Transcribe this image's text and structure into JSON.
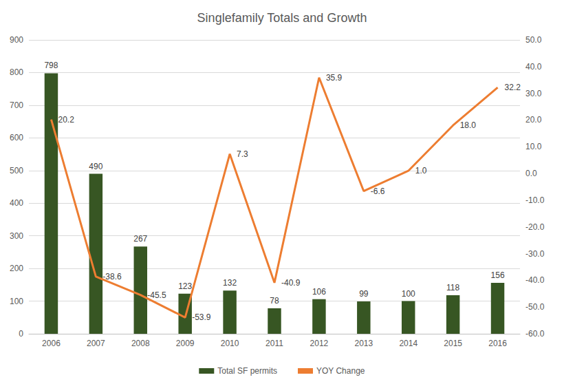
{
  "chart_data": {
    "type": "bar",
    "title": "Singlefamily Totals and Growth",
    "categories": [
      "2006",
      "2007",
      "2008",
      "2009",
      "2010",
      "2011",
      "2012",
      "2013",
      "2014",
      "2015",
      "2016"
    ],
    "series": [
      {
        "name": "Total SF permits",
        "type": "bar",
        "color": "#375623",
        "values": [
          798,
          490,
          267,
          123,
          132,
          78,
          106,
          99,
          100,
          118,
          156
        ]
      },
      {
        "name": "YOY Change",
        "type": "line",
        "axis": "y2",
        "color": "#ed7d31",
        "marker": "none",
        "values": [
          20.2,
          -38.6,
          -45.5,
          -53.9,
          7.3,
          -40.9,
          35.9,
          -6.6,
          1.0,
          18.0,
          32.2
        ],
        "value_labels": [
          "20.2",
          "-38.6",
          "-45.5",
          "-53.9",
          "7.3",
          "-40.9",
          "35.9",
          "-6.6",
          "1.0",
          "18.0",
          "32.2"
        ]
      }
    ],
    "ylim": [
      0,
      900
    ],
    "yticks": [
      0,
      100,
      200,
      300,
      400,
      500,
      600,
      700,
      800,
      900
    ],
    "y2lim": [
      -60,
      50
    ],
    "y2ticks": [
      {
        "value": -60,
        "label": "-60.0"
      },
      {
        "value": -50,
        "label": "-50.0"
      },
      {
        "value": -40,
        "label": "-40.0"
      },
      {
        "value": -30,
        "label": "-30.0"
      },
      {
        "value": -20,
        "label": "-20.0"
      },
      {
        "value": -10,
        "label": "-10.0"
      },
      {
        "value": 0,
        "label": "0.0"
      },
      {
        "value": 10,
        "label": "10.0"
      },
      {
        "value": 20,
        "label": "20.0"
      },
      {
        "value": 30,
        "label": "30.0"
      },
      {
        "value": 40,
        "label": "40.0"
      },
      {
        "value": 50,
        "label": "50.0"
      }
    ],
    "grid": true,
    "legend": "bottom",
    "data_labels": true
  }
}
